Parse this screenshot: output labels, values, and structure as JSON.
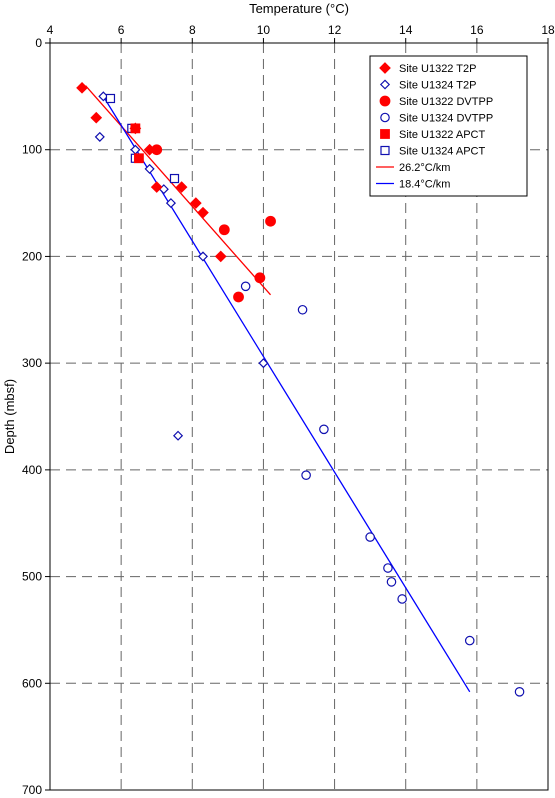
{
  "chart_data": {
    "type": "scatter",
    "xlabel": "Temperature (°C)",
    "ylabel": "Depth (mbsf)",
    "xlim": [
      4,
      18
    ],
    "ylim": [
      0,
      700
    ],
    "y_inverted": true,
    "x_axis_position": "top",
    "x_ticks": [
      4,
      6,
      8,
      10,
      12,
      14,
      16,
      18
    ],
    "y_ticks": [
      0,
      100,
      200,
      300,
      400,
      500,
      600,
      700
    ],
    "grid": "dashed",
    "legend_position": "top-right",
    "colors": {
      "red": "#ff0000",
      "blue": "#1010b0",
      "fit_blue": "#0000ff"
    },
    "series": [
      {
        "name": "Site U1322 T2P",
        "marker": "diamond-filled",
        "color": "#ff0000",
        "points": [
          [
            4.9,
            42
          ],
          [
            5.3,
            70
          ],
          [
            6.4,
            80
          ],
          [
            6.8,
            100
          ],
          [
            7.0,
            135
          ],
          [
            7.7,
            135
          ],
          [
            8.1,
            150
          ],
          [
            8.3,
            159
          ],
          [
            8.8,
            200
          ]
        ]
      },
      {
        "name": "Site U1324 T2P",
        "marker": "diamond-open",
        "color": "#1010b0",
        "points": [
          [
            5.4,
            88
          ],
          [
            5.5,
            50
          ],
          [
            6.4,
            100
          ],
          [
            6.8,
            118
          ],
          [
            7.2,
            137
          ],
          [
            7.4,
            150
          ],
          [
            8.3,
            200
          ],
          [
            10.0,
            300
          ],
          [
            7.6,
            368
          ]
        ]
      },
      {
        "name": "Site U1322 DVTPP",
        "marker": "circle-filled",
        "color": "#ff0000",
        "points": [
          [
            7.0,
            100
          ],
          [
            8.9,
            175
          ],
          [
            10.2,
            167
          ],
          [
            9.9,
            220
          ],
          [
            9.3,
            238
          ]
        ]
      },
      {
        "name": "Site U1324 DVTPP",
        "marker": "circle-open",
        "color": "#1010b0",
        "points": [
          [
            9.5,
            228
          ],
          [
            11.1,
            250
          ],
          [
            11.7,
            362
          ],
          [
            11.2,
            405
          ],
          [
            13.0,
            463
          ],
          [
            13.5,
            492
          ],
          [
            13.6,
            505
          ],
          [
            13.9,
            521
          ],
          [
            15.8,
            560
          ],
          [
            17.2,
            608
          ]
        ]
      },
      {
        "name": "Site U1322 APCT",
        "marker": "square-filled",
        "color": "#ff0000",
        "points": [
          [
            6.4,
            80
          ],
          [
            6.5,
            108
          ]
        ]
      },
      {
        "name": "Site U1324 APCT",
        "marker": "square-open",
        "color": "#1010b0",
        "points": [
          [
            5.7,
            52
          ],
          [
            6.3,
            80
          ],
          [
            6.4,
            108
          ],
          [
            7.5,
            127
          ]
        ]
      }
    ],
    "fit_lines": [
      {
        "name": "26.2°C/km",
        "color": "#ff0000",
        "points": [
          [
            5.0,
            40
          ],
          [
            10.2,
            236
          ]
        ]
      },
      {
        "name": "18.4°C/km",
        "color": "#0000ff",
        "points": [
          [
            5.5,
            50
          ],
          [
            15.8,
            608
          ]
        ]
      }
    ]
  }
}
